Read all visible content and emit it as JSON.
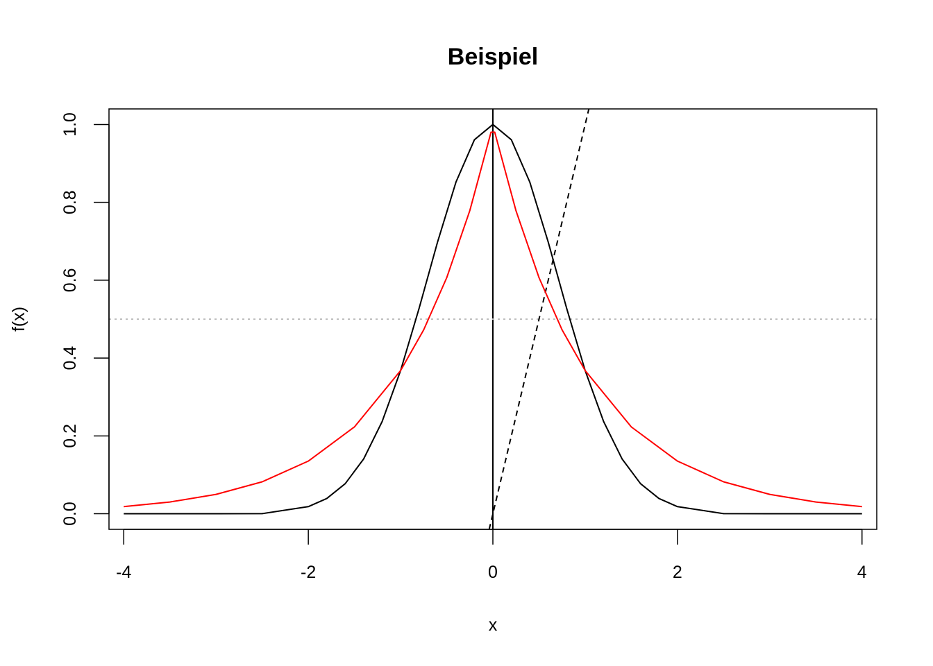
{
  "chart_data": {
    "type": "line",
    "title": "Beispiel",
    "xlabel": "x",
    "ylabel": "f(x)",
    "xlim": [
      -4.16,
      4.16
    ],
    "ylim": [
      -0.04,
      1.04
    ],
    "x_ticks": [
      -4,
      -2,
      0,
      2,
      4
    ],
    "x_tick_labels": [
      "-4",
      "-2",
      "0",
      "2",
      "4"
    ],
    "y_ticks": [
      0.0,
      0.2,
      0.4,
      0.6,
      0.8,
      1.0
    ],
    "y_tick_labels": [
      "0.0",
      "0.2",
      "0.4",
      "0.6",
      "0.8",
      "1.0"
    ],
    "grid": false,
    "series": [
      {
        "color": "#000000",
        "style": "solid",
        "x": [
          -4,
          -3.5,
          -3,
          -2.5,
          -2,
          -1.8,
          -1.6,
          -1.4,
          -1.2,
          -1,
          -0.8,
          -0.6,
          -0.4,
          -0.2,
          0,
          0.2,
          0.4,
          0.6,
          0.8,
          1,
          1.2,
          1.4,
          1.6,
          1.8,
          2,
          2.5,
          3,
          3.5,
          4
        ],
        "y": [
          0,
          0,
          0,
          0.0003,
          0.0183,
          0.0392,
          0.0773,
          0.1409,
          0.2369,
          0.3679,
          0.5273,
          0.6977,
          0.8521,
          0.9608,
          1,
          0.9608,
          0.8521,
          0.6977,
          0.5273,
          0.3679,
          0.2369,
          0.1409,
          0.0773,
          0.0392,
          0.0183,
          0.0003,
          0,
          0,
          0
        ]
      },
      {
        "color": "#ff0000",
        "style": "solid",
        "x": [
          -4,
          -3.5,
          -3,
          -2.5,
          -2,
          -1.5,
          -1,
          -0.75,
          -0.5,
          -0.25,
          -0.02,
          0,
          0.02,
          0.25,
          0.5,
          0.75,
          1,
          1.5,
          2,
          2.5,
          3,
          3.5,
          4
        ],
        "y": [
          0.0183,
          0.0302,
          0.0498,
          0.0821,
          0.1353,
          0.2231,
          0.3679,
          0.4724,
          0.6065,
          0.7788,
          0.9802,
          0.9802,
          0.9802,
          0.7788,
          0.6065,
          0.4724,
          0.3679,
          0.2231,
          0.1353,
          0.0821,
          0.0498,
          0.0302,
          0.0183
        ]
      }
    ],
    "reference_lines": [
      {
        "orientation": "vertical",
        "x": 0,
        "color": "#000000",
        "style": "solid"
      },
      {
        "orientation": "horizontal",
        "y": 0.5,
        "color": "#bebebe",
        "style": "dotted"
      },
      {
        "orientation": "sloped",
        "intercept": 0,
        "slope": 1,
        "color": "#000000",
        "style": "dashed"
      }
    ]
  }
}
